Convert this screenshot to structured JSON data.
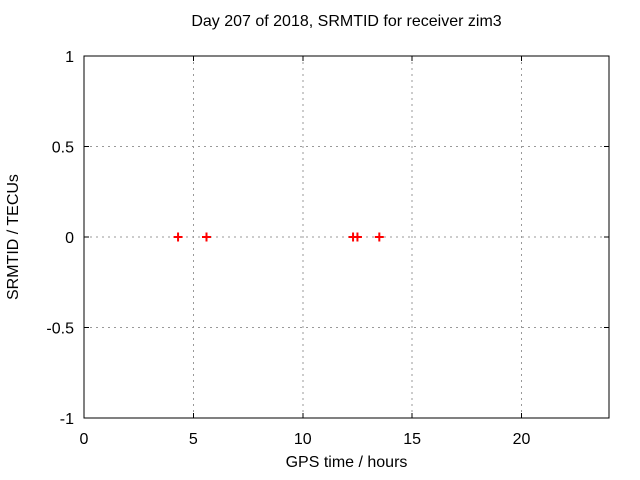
{
  "chart_data": {
    "type": "scatter",
    "title": "Day 207 of 2018, SRMTID for receiver zim3",
    "xlabel": "GPS time / hours",
    "ylabel": "SRMTID / TECUs",
    "xlim": [
      0,
      24
    ],
    "ylim": [
      -1,
      1
    ],
    "xticks": [
      0,
      5,
      10,
      15,
      20
    ],
    "yticks": [
      -1,
      -0.5,
      0,
      0.5,
      1
    ],
    "grid": true,
    "legend_position": "none",
    "series": [
      {
        "name": "SRMTID",
        "marker": "plus",
        "color": "#ff0000",
        "points": [
          {
            "x": 4.3,
            "y": 0
          },
          {
            "x": 5.6,
            "y": 0
          },
          {
            "x": 12.3,
            "y": 0
          },
          {
            "x": 12.5,
            "y": 0
          },
          {
            "x": 13.5,
            "y": 0
          }
        ]
      }
    ]
  },
  "colors": {
    "background": "#ffffff",
    "plot_border": "#000000",
    "grid": "#999999",
    "text": "#000000",
    "marker": "#ff0000"
  }
}
